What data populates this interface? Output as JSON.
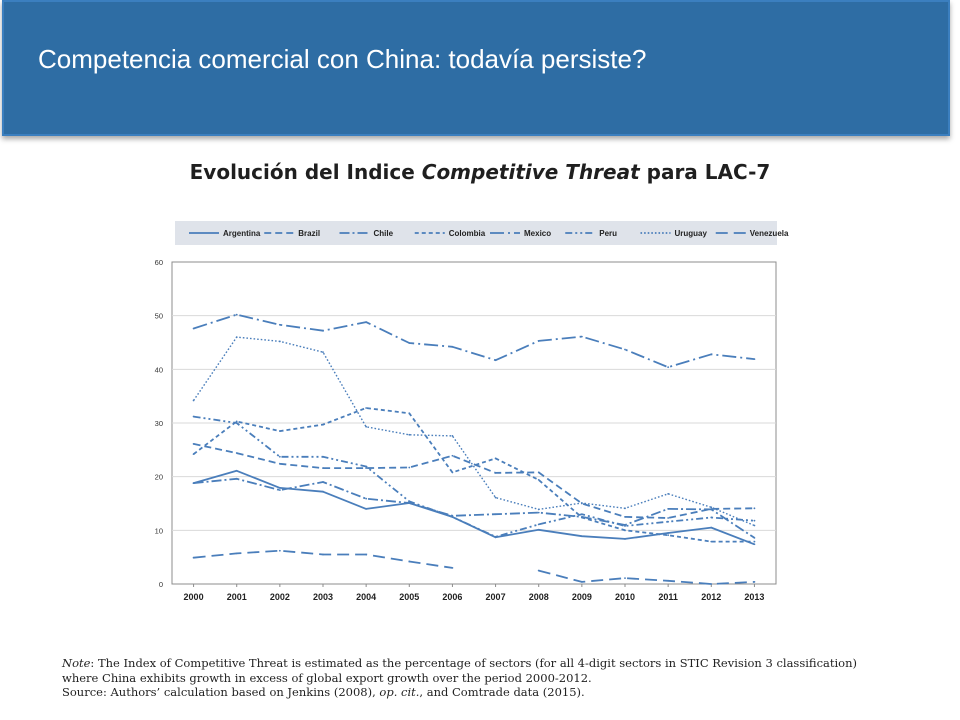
{
  "header": {
    "title": "Competencia comercial con China: todavía persiste?"
  },
  "subtitle": {
    "prefix": "Evolución del Indice ",
    "emphasis": "Competitive Threat",
    "suffix": " para LAC-7"
  },
  "note": {
    "label": "Note",
    "line1": ": The Index of Competitive Threat is estimated as the percentage of sectors (for all 4-digit sectors in STIC Revision 3 classification)",
    "line2": "where China exhibits growth in excess of global export growth over the period 2000-2012.",
    "line3_prefix": "Source: Authors’ calculation based on Jenkins (2008), ",
    "line3_italic": "op. cit.",
    "line3_suffix": ", and Comtrade data (2015)."
  },
  "colors": {
    "header_bg": "#2e6da4",
    "series": "#4a7ebb",
    "legend_bg": "#dfe3ea",
    "grid": "#ffffff",
    "plot_bg": "#ffffff"
  },
  "chart_data": {
    "type": "line",
    "title": "Evolución del Indice Competitive Threat para LAC-7",
    "xlabel": "",
    "ylabel": "",
    "x": [
      2000,
      2001,
      2002,
      2003,
      2004,
      2005,
      2006,
      2007,
      2008,
      2009,
      2010,
      2011,
      2012,
      2013
    ],
    "ylim": [
      0,
      60
    ],
    "yticks": [
      0,
      10,
      20,
      30,
      40,
      50,
      60
    ],
    "legend_position": "top",
    "series": [
      {
        "name": "Argentina",
        "dash": "solid",
        "values": [
          18.8,
          21.1,
          17.9,
          17.2,
          14.0,
          15.1,
          12.5,
          8.7,
          10.1,
          8.9,
          8.4,
          9.5,
          10.5,
          7.4
        ]
      },
      {
        "name": "Brazil",
        "dash": "dash",
        "values": [
          26.1,
          24.4,
          22.4,
          21.6,
          21.6,
          21.7,
          23.9,
          20.7,
          20.8,
          15.0,
          12.5,
          12.3,
          14.0,
          14.1
        ]
      },
      {
        "name": "Chile",
        "dash": "dashdot",
        "values": [
          18.8,
          19.6,
          17.5,
          19.0,
          15.9,
          15.1,
          12.7,
          13.0,
          13.3,
          12.5,
          11.0,
          14.0,
          13.9,
          8.6
        ]
      },
      {
        "name": "Colombia",
        "dash": "shortdash",
        "values": [
          24.2,
          30.3,
          28.5,
          29.7,
          32.8,
          31.8,
          20.8,
          23.4,
          19.4,
          12.4,
          10.0,
          9.1,
          7.9,
          7.9
        ]
      },
      {
        "name": "Mexico",
        "dash": "longdashdot",
        "values": [
          47.6,
          50.2,
          48.3,
          47.2,
          48.8,
          44.9,
          44.2,
          41.7,
          45.3,
          46.1,
          43.7,
          40.4,
          42.8,
          41.9
        ]
      },
      {
        "name": "Peru",
        "dash": "dashdotdot",
        "values": [
          31.2,
          30.0,
          23.7,
          23.7,
          21.9,
          15.4,
          12.5,
          8.8,
          11.1,
          13.0,
          10.8,
          11.6,
          12.4,
          11.8
        ]
      },
      {
        "name": "Uruguay",
        "dash": "dot",
        "values": [
          34.2,
          46.0,
          45.2,
          43.2,
          29.3,
          27.8,
          27.6,
          16.1,
          13.9,
          15.1,
          14.1,
          16.8,
          14.3,
          10.9
        ]
      },
      {
        "name": "Venezuela",
        "dash": "longdash",
        "values": [
          4.9,
          5.7,
          6.2,
          5.5,
          5.5,
          4.2,
          3.0,
          null,
          2.5,
          0.4,
          1.1,
          0.6,
          0.0,
          0.4
        ]
      }
    ]
  }
}
